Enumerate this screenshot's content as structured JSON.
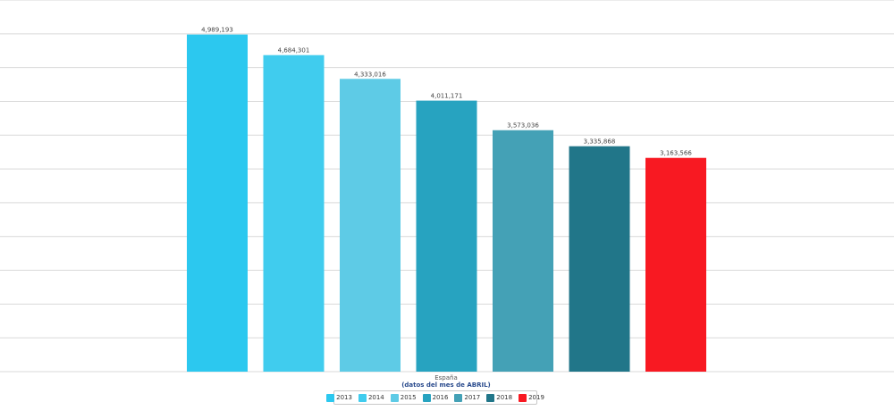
{
  "chart_data": {
    "type": "bar",
    "categories": [
      "España"
    ],
    "xlabel_sub": "(datos del mes de ABRIL)",
    "ylim": [
      0,
      5500000
    ],
    "grid": true,
    "legend_position": "bottom-center",
    "series": [
      {
        "name": "2013",
        "value": 4989193,
        "label": "4,989,193",
        "color": "#2cc8ef"
      },
      {
        "name": "2014",
        "value": 4684301,
        "label": "4,684,301",
        "color": "#40ccee"
      },
      {
        "name": "2015",
        "value": 4333016,
        "label": "4,333,016",
        "color": "#5ecbe6"
      },
      {
        "name": "2016",
        "value": 4011171,
        "label": "4,011,171",
        "color": "#27a3c0"
      },
      {
        "name": "2017",
        "value": 3573036,
        "label": "3,573,036",
        "color": "#44a1b6"
      },
      {
        "name": "2018",
        "value": 3335868,
        "label": "3,335,868",
        "color": "#217689"
      },
      {
        "name": "2019",
        "value": 3163566,
        "label": "3,163,566",
        "color": "#f81922"
      }
    ]
  }
}
